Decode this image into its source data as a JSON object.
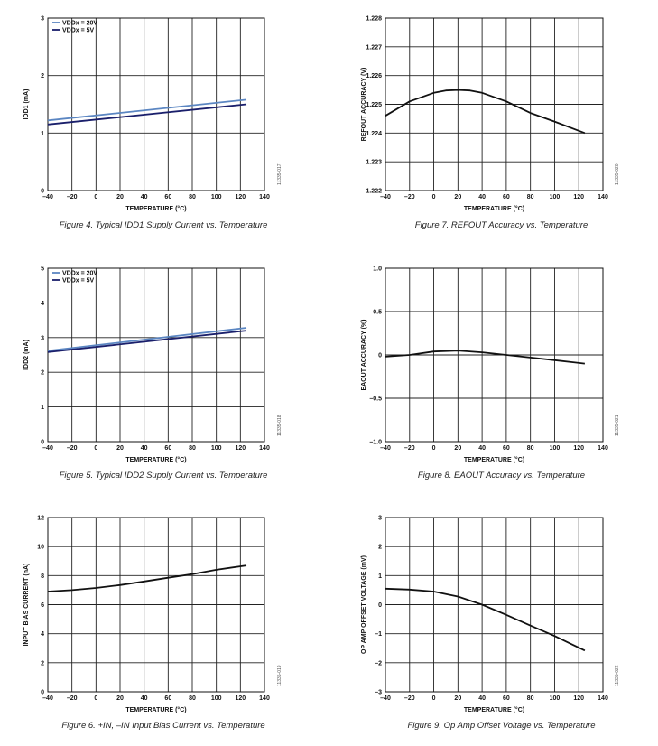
{
  "charts": [
    {
      "caption": "Figure 4. Typical IDD1 Supply Current vs. Temperature",
      "code": "11335-017",
      "chart_data": {
        "type": "line",
        "xlabel": "TEMPERATURE (°C)",
        "ylabel": "IDD1 (mA)",
        "xlim": [
          -40,
          140
        ],
        "ylim": [
          0,
          3
        ],
        "xticks": [
          -40,
          -20,
          0,
          20,
          40,
          60,
          80,
          100,
          120,
          140
        ],
        "yticks": [
          0,
          1,
          2,
          3
        ],
        "legend": "top-left",
        "grid": true,
        "series": [
          {
            "name": "VDDx = 20V",
            "color": "#5b86c2",
            "x": [
              -40,
              125
            ],
            "y": [
              1.22,
              1.58
            ]
          },
          {
            "name": "VDDx = 5V",
            "color": "#1a1f6b",
            "x": [
              -40,
              125
            ],
            "y": [
              1.15,
              1.5
            ]
          }
        ]
      }
    },
    {
      "caption": "Figure 7. REFOUT Accuracy vs. Temperature",
      "code": "11335-020",
      "chart_data": {
        "type": "line",
        "xlabel": "TEMPERATURE (°C)",
        "ylabel": "REFOUT ACCURACY (V)",
        "xlim": [
          -40,
          140
        ],
        "ylim": [
          1.222,
          1.228
        ],
        "xticks": [
          -40,
          -20,
          0,
          20,
          40,
          60,
          80,
          100,
          120,
          140
        ],
        "yticks": [
          1.222,
          1.223,
          1.224,
          1.225,
          1.226,
          1.227,
          1.228
        ],
        "ytick_labels": [
          "1.222",
          "1.223",
          "1.224",
          "1.225",
          "1.226",
          "1.227",
          "1.228"
        ],
        "grid": true,
        "series": [
          {
            "color": "#111111",
            "x": [
              -40,
              -20,
              0,
              10,
              20,
              30,
              40,
              60,
              80,
              100,
              125
            ],
            "y": [
              1.2246,
              1.2251,
              1.2254,
              1.22548,
              1.2255,
              1.22548,
              1.2254,
              1.2251,
              1.2247,
              1.2244,
              1.224
            ]
          }
        ]
      }
    },
    {
      "caption": "Figure 5. Typical IDD2 Supply Current vs. Temperature",
      "code": "11335-018",
      "chart_data": {
        "type": "line",
        "xlabel": "TEMPERATURE (°C)",
        "ylabel": "IDD2 (mA)",
        "xlim": [
          -40,
          140
        ],
        "ylim": [
          0,
          5
        ],
        "xticks": [
          -40,
          -20,
          0,
          20,
          40,
          60,
          80,
          100,
          120,
          140
        ],
        "yticks": [
          0,
          1,
          2,
          3,
          4,
          5
        ],
        "legend": "top-left",
        "grid": true,
        "series": [
          {
            "name": "VDDx = 20V",
            "color": "#5b86c2",
            "x": [
              -40,
              125
            ],
            "y": [
              2.62,
              3.28
            ]
          },
          {
            "name": "VDDx = 5V",
            "color": "#1a1f6b",
            "x": [
              -40,
              125
            ],
            "y": [
              2.58,
              3.2
            ]
          }
        ]
      }
    },
    {
      "caption": "Figure 8. EAOUT Accuracy vs. Temperature",
      "code": "11335-021",
      "chart_data": {
        "type": "line",
        "xlabel": "TEMPERATURE (°C)",
        "ylabel": "EAOUT ACCURACY (%)",
        "xlim": [
          -40,
          140
        ],
        "ylim": [
          -1,
          1
        ],
        "xticks": [
          -40,
          -20,
          0,
          20,
          40,
          60,
          80,
          100,
          120,
          140
        ],
        "yticks": [
          -1,
          -0.5,
          0,
          0.5,
          1
        ],
        "ytick_labels": [
          "–1.0",
          "–0.5",
          "0",
          "0.5",
          "1.0"
        ],
        "grid": true,
        "series": [
          {
            "color": "#111111",
            "x": [
              -40,
              -20,
              0,
              20,
              40,
              60,
              80,
              100,
              125
            ],
            "y": [
              -0.02,
              0.0,
              0.04,
              0.05,
              0.03,
              0.0,
              -0.03,
              -0.06,
              -0.1
            ]
          }
        ]
      }
    },
    {
      "caption": "Figure 6. +IN, –IN Input Bias Current vs. Temperature",
      "code": "11335-019",
      "chart_data": {
        "type": "line",
        "xlabel": "TEMPERATURE (°C)",
        "ylabel": "INPUT BIAS CURRENT (nA)",
        "xlim": [
          -40,
          140
        ],
        "ylim": [
          0,
          12
        ],
        "xticks": [
          -40,
          -20,
          0,
          20,
          40,
          60,
          80,
          100,
          120,
          140
        ],
        "yticks": [
          0,
          2,
          4,
          6,
          8,
          10,
          12
        ],
        "grid": true,
        "series": [
          {
            "color": "#111111",
            "x": [
              -40,
              -20,
              0,
              20,
              40,
              60,
              80,
              100,
              125
            ],
            "y": [
              6.9,
              7.0,
              7.15,
              7.35,
              7.6,
              7.85,
              8.1,
              8.4,
              8.7
            ]
          }
        ]
      }
    },
    {
      "caption": "Figure 9. Op Amp Offset Voltage vs. Temperature",
      "code": "11335-022",
      "chart_data": {
        "type": "line",
        "xlabel": "TEMPERATURE (°C)",
        "ylabel": "OP AMP OFFSET VOLTAGE (mV)",
        "xlim": [
          -40,
          140
        ],
        "ylim": [
          -3,
          3
        ],
        "xticks": [
          -40,
          -20,
          0,
          20,
          40,
          60,
          80,
          100,
          120,
          140
        ],
        "yticks": [
          -3,
          -2,
          -1,
          0,
          1,
          2,
          3
        ],
        "ytick_labels": [
          "–3",
          "–2",
          "–1",
          "0",
          "1",
          "2",
          "3"
        ],
        "grid": true,
        "series": [
          {
            "color": "#111111",
            "x": [
              -40,
              -20,
              0,
              20,
              40,
              60,
              80,
              100,
              125
            ],
            "y": [
              0.55,
              0.52,
              0.45,
              0.28,
              0.0,
              -0.35,
              -0.72,
              -1.08,
              -1.58
            ]
          }
        ]
      }
    }
  ]
}
